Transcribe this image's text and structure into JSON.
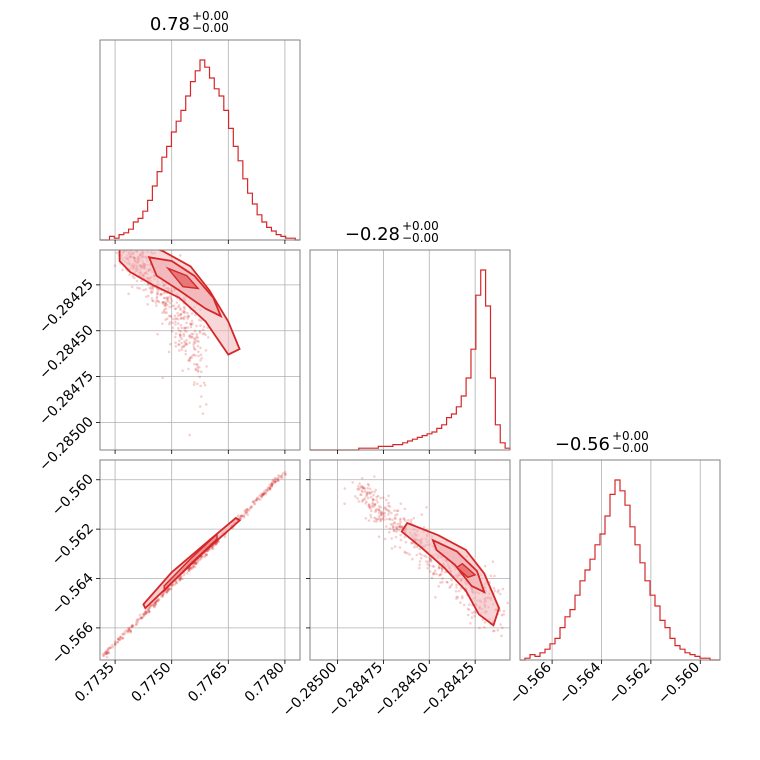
{
  "chart_data": {
    "type": "corner",
    "color": "#d62728",
    "fill_color": "#f2b7ba",
    "grid": true,
    "params": [
      {
        "title": {
          "value": "0.78",
          "plus": "+0.00",
          "minus": "−0.00"
        },
        "range": [
          0.7731,
          0.7784
        ],
        "ticks": [
          0.7735,
          0.775,
          0.7765,
          0.778
        ],
        "tick_labels": [
          "0.7735",
          "0.7750",
          "0.7765",
          "0.7780"
        ]
      },
      {
        "title": {
          "value": "−0.28",
          "plus": "+0.00",
          "minus": "−0.00"
        },
        "range": [
          -0.28515,
          -0.28406
        ],
        "ticks": [
          -0.285,
          -0.28475,
          -0.2845,
          -0.28425
        ],
        "tick_labels": [
          "−0.28500",
          "−0.28475",
          "−0.28450",
          "−0.28425"
        ]
      },
      {
        "title": {
          "value": "−0.56",
          "plus": "+0.00",
          "minus": "−0.00"
        },
        "range": [
          -0.5673,
          -0.5592
        ],
        "ticks": [
          -0.566,
          -0.564,
          -0.562,
          -0.56
        ],
        "tick_labels": [
          "−0.566",
          "−0.564",
          "−0.562",
          "−0.560"
        ]
      }
    ],
    "histograms": [
      {
        "param": 0,
        "values": [
          0,
          0,
          2,
          1,
          3,
          4,
          6,
          10,
          12,
          16,
          22,
          30,
          38,
          46,
          52,
          60,
          66,
          72,
          80,
          88,
          94,
          100,
          96,
          90,
          84,
          80,
          72,
          62,
          52,
          44,
          34,
          26,
          20,
          14,
          10,
          7,
          5,
          3,
          2,
          1,
          1,
          0
        ]
      },
      {
        "param": 1,
        "values": [
          0,
          0,
          0,
          0,
          0,
          0,
          0,
          0,
          0,
          0,
          1,
          1,
          1,
          1,
          2,
          2,
          2,
          3,
          3,
          4,
          5,
          6,
          7,
          8,
          9,
          10,
          12,
          14,
          18,
          20,
          24,
          30,
          40,
          56,
          86,
          100,
          80,
          40,
          14,
          4,
          1
        ]
      },
      {
        "param": 2,
        "values": [
          0,
          1,
          3,
          2,
          4,
          6,
          9,
          12,
          18,
          24,
          28,
          36,
          44,
          50,
          56,
          64,
          70,
          80,
          92,
          100,
          94,
          86,
          74,
          64,
          54,
          44,
          36,
          30,
          22,
          18,
          12,
          8,
          6,
          4,
          3,
          2,
          1,
          1,
          0,
          0
        ]
      }
    ],
    "pair_samples": [
      {
        "x_param": 0,
        "y_param": 1,
        "center": [
          0.7754,
          -0.28432
        ],
        "relation": "negative curved"
      },
      {
        "x_param": 0,
        "y_param": 2,
        "center": [
          0.7756,
          -0.5637
        ],
        "relation": "strong positive linear"
      },
      {
        "x_param": 1,
        "y_param": 2,
        "center": [
          -0.2843,
          -0.5637
        ],
        "relation": "negative"
      }
    ]
  }
}
